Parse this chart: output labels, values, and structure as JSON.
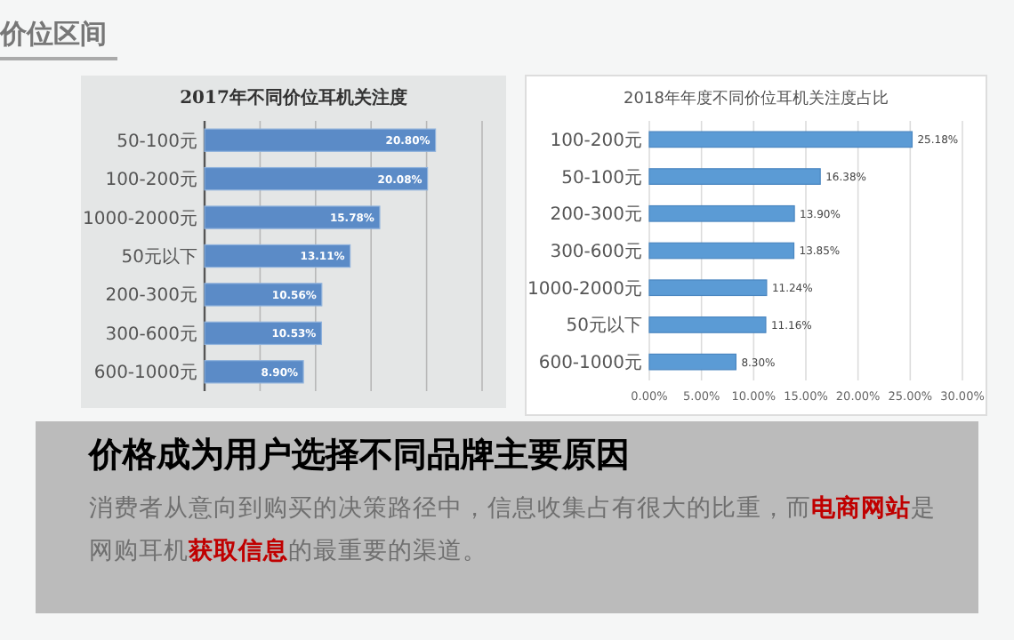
{
  "chart_data": [
    {
      "type": "bar",
      "orientation": "horizontal",
      "title": "2017年不同价位耳机关注度",
      "categories": [
        "50-100元",
        "100-200元",
        "1000-2000元",
        "50元以下",
        "200-300元",
        "300-600元",
        "600-1000元"
      ],
      "values": [
        20.8,
        20.08,
        15.78,
        13.11,
        10.56,
        10.53,
        8.9
      ],
      "value_labels": [
        "20.80%",
        "20.08%",
        "15.78%",
        "13.11%",
        "10.56%",
        "10.53%",
        "8.90%"
      ],
      "color": "#5b8bc7",
      "xlim": [
        0,
        25
      ],
      "xticks": [
        {
          "value": 0,
          "label": null
        },
        {
          "value": 5,
          "label": null
        },
        {
          "value": 10,
          "label": null
        },
        {
          "value": 15,
          "label": null
        },
        {
          "value": 20,
          "label": null
        },
        {
          "value": 25,
          "label": null
        }
      ],
      "tick_labels": "y",
      "grid": "x",
      "annotations": [
        "价位区间"
      ]
    },
    {
      "type": "bar",
      "orientation": "horizontal",
      "title": "2018年年度不同价位耳机关注度占比",
      "categories": [
        "100-200元",
        "50-100元",
        "200-300元",
        "300-600元",
        "1000-2000元",
        "50元以下",
        "600-1000元"
      ],
      "values": [
        25.18,
        16.38,
        13.9,
        13.85,
        11.24,
        11.16,
        8.3
      ],
      "value_labels": [
        "25.18%",
        "16.38%",
        "13.90%",
        "13.85%",
        "11.24%",
        "11.16%",
        "8.30%"
      ],
      "color": "#5b9bd5",
      "xlim": [
        0,
        30
      ],
      "xticks": [
        {
          "value": 0,
          "label": "0.00%"
        },
        {
          "value": 5,
          "label": "5.00%"
        },
        {
          "value": 10,
          "label": "10.00%"
        },
        {
          "value": 15,
          "label": "15.00%"
        },
        {
          "value": 20,
          "label": "20.00%"
        },
        {
          "value": 25,
          "label": "25.00%"
        },
        {
          "value": 30,
          "label": "30.00%"
        }
      ],
      "grid": "x"
    },
    {
      "type": "other",
      "title": "价格成为用户选择不同品牌主要原因",
      "annotations": [
        "消费者从意向到购买的决策路径中，信息收集占有很大的比重，而**电商网站**是网购耳机**获取信息**的最重要的渠道。"
      ]
    }
  ]
}
